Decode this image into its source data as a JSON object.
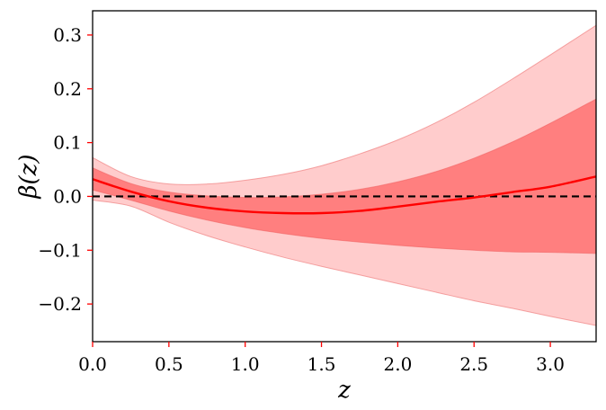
{
  "chart_data": {
    "type": "line",
    "title": "",
    "xlabel": "z",
    "ylabel": "β(z)",
    "xlim": [
      0.0,
      3.3
    ],
    "ylim": [
      -0.27,
      0.345
    ],
    "x_ticks": [
      0.0,
      0.5,
      1.0,
      1.5,
      2.0,
      2.5,
      3.0
    ],
    "x_tick_labels": [
      "0.0",
      "0.5",
      "1.0",
      "1.5",
      "2.0",
      "2.5",
      "3.0"
    ],
    "y_ticks": [
      -0.2,
      -0.1,
      0.0,
      0.1,
      0.2,
      0.3
    ],
    "y_tick_labels": [
      "−0.2",
      "−0.1",
      "0.0",
      "0.1",
      "0.2",
      "0.3"
    ],
    "grid": false,
    "legend": "none",
    "colors": {
      "mean_line": "#ff0000",
      "band_1sigma": "#ff7f7f",
      "band_2sigma": "#ffcccc",
      "band_edge": "#f08080",
      "reference_line": "#000000",
      "axis_ink": "#000000",
      "tick_mark": "#ff0000"
    },
    "reference_line_y": 0.0,
    "x": [
      0.0,
      0.25,
      0.5,
      0.75,
      1.0,
      1.25,
      1.5,
      1.75,
      2.0,
      2.25,
      2.5,
      2.75,
      3.0,
      3.3
    ],
    "series": [
      {
        "role": "mean",
        "values": [
          0.032,
          0.009,
          -0.009,
          -0.021,
          -0.028,
          -0.031,
          -0.031,
          -0.027,
          -0.019,
          -0.01,
          -0.002,
          0.008,
          0.018,
          0.037
        ]
      },
      {
        "role": "band_1sigma_upper",
        "values": [
          0.053,
          0.024,
          0.008,
          0.001,
          -0.002,
          -0.001,
          0.004,
          0.013,
          0.027,
          0.046,
          0.071,
          0.101,
          0.136,
          0.181
        ]
      },
      {
        "role": "band_1sigma_lower",
        "values": [
          0.012,
          -0.007,
          -0.027,
          -0.044,
          -0.058,
          -0.069,
          -0.078,
          -0.085,
          -0.091,
          -0.096,
          -0.1,
          -0.103,
          -0.104,
          -0.106
        ]
      },
      {
        "role": "band_2sigma_upper",
        "values": [
          0.072,
          0.037,
          0.023,
          0.023,
          0.03,
          0.041,
          0.057,
          0.079,
          0.105,
          0.137,
          0.175,
          0.218,
          0.263,
          0.318
        ]
      },
      {
        "role": "band_2sigma_lower",
        "values": [
          -0.007,
          -0.018,
          -0.048,
          -0.073,
          -0.094,
          -0.113,
          -0.13,
          -0.146,
          -0.162,
          -0.178,
          -0.194,
          -0.208,
          -0.223,
          -0.24
        ]
      }
    ]
  }
}
